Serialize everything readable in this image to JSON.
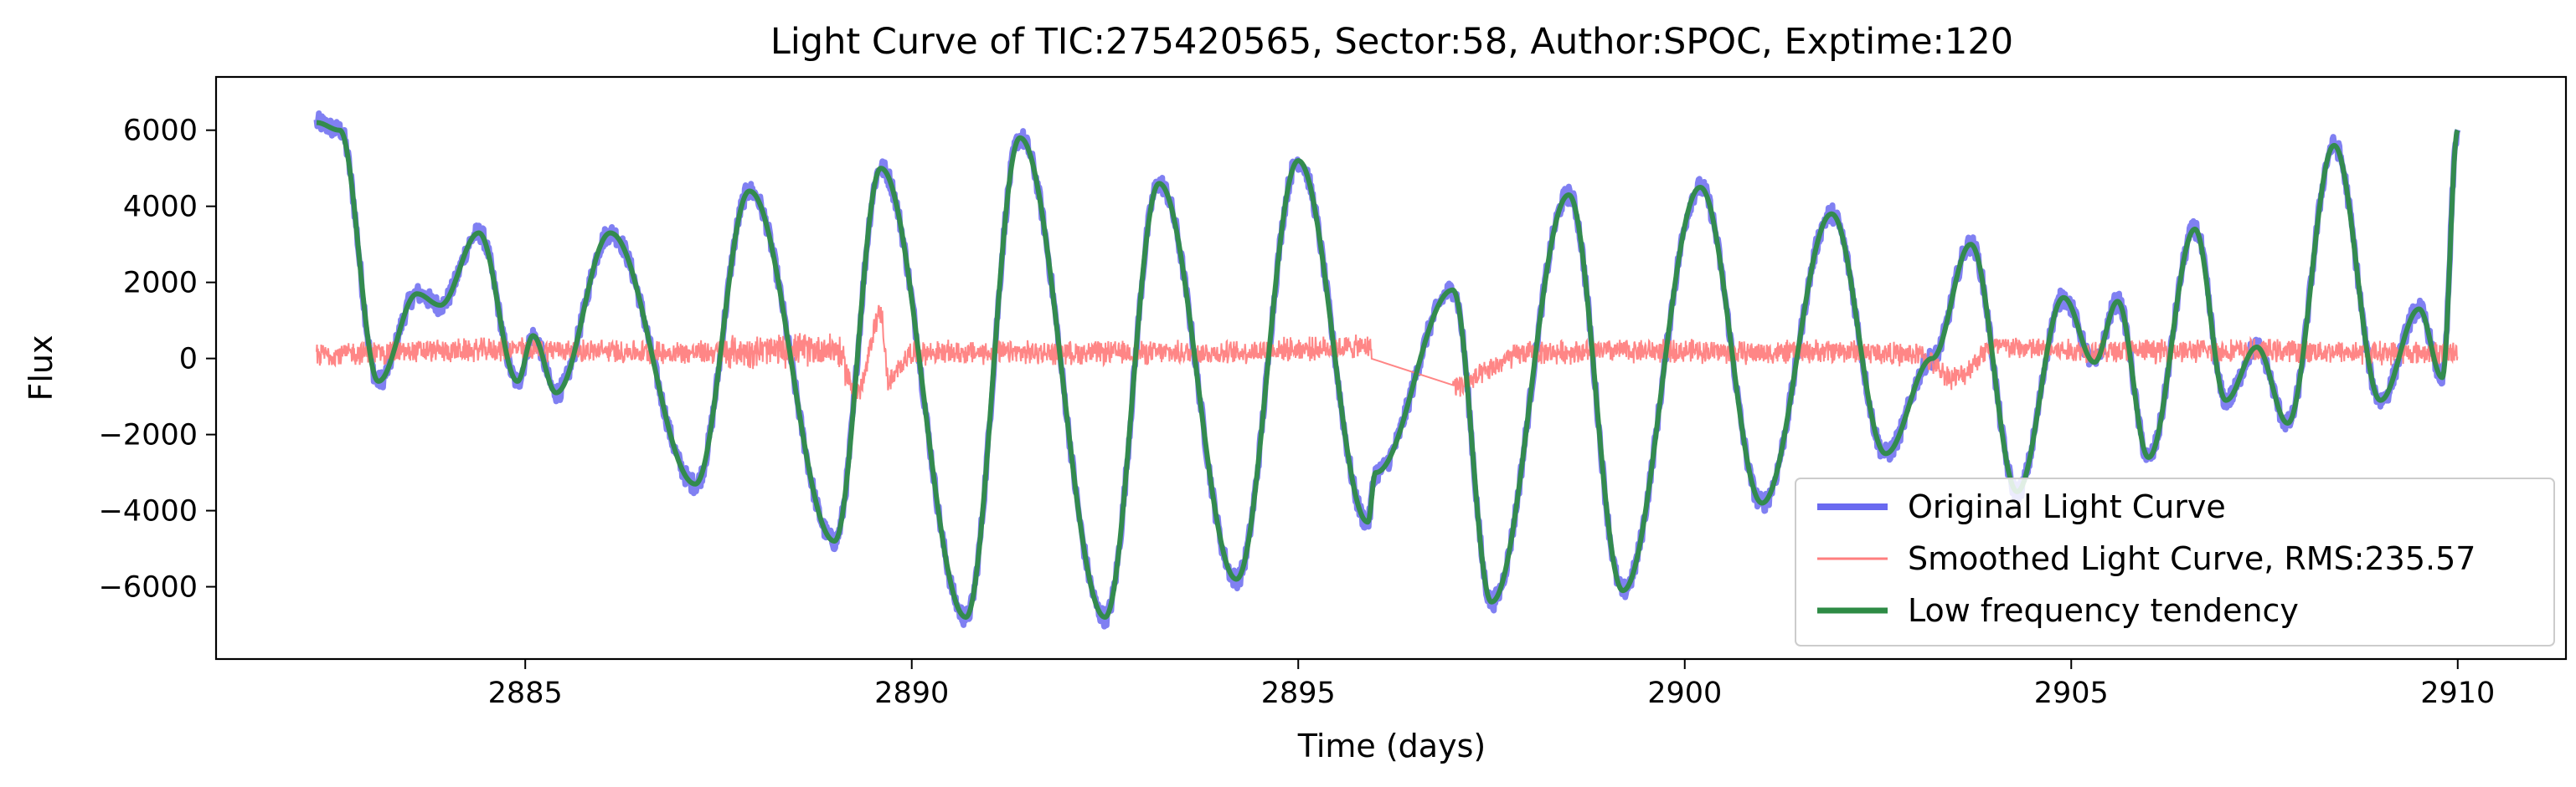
{
  "chart_data": {
    "type": "line",
    "title": "Light Curve of TIC:275420565, Sector:58, Author:SPOC, Exptime:120",
    "xlabel": "Time (days)",
    "ylabel": "Flux",
    "xlim": [
      2881.0,
      2911.4
    ],
    "ylim": [
      -7900,
      7400
    ],
    "x_ticks": [
      {
        "value": 2885,
        "label": "2885"
      },
      {
        "value": 2890,
        "label": "2890"
      },
      {
        "value": 2895,
        "label": "2895"
      },
      {
        "value": 2900,
        "label": "2900"
      },
      {
        "value": 2905,
        "label": "2905"
      },
      {
        "value": 2910,
        "label": "2910"
      }
    ],
    "y_ticks": [
      {
        "value": 6000,
        "label": "6000"
      },
      {
        "value": 4000,
        "label": "4000"
      },
      {
        "value": 2000,
        "label": "2000"
      },
      {
        "value": 0,
        "label": "0"
      },
      {
        "value": -2000,
        "label": "−2000"
      },
      {
        "value": -4000,
        "label": "−4000"
      },
      {
        "value": -6000,
        "label": "−6000"
      }
    ],
    "grid": false,
    "legend_position": "lower-right",
    "gap": [
      2896.0,
      2897.0
    ],
    "series": [
      {
        "name": "Original Light Curve",
        "color": "#6a6af0",
        "style": "thick-noisy",
        "x": [
          2882.3,
          2882.6,
          2883.1,
          2883.6,
          2883.9,
          2884.4,
          2884.9,
          2885.1,
          2885.4,
          2886.1,
          2887.2,
          2887.9,
          2889.0,
          2889.6,
          2890.7,
          2891.4,
          2892.5,
          2893.2,
          2894.2,
          2895.0,
          2895.9,
          2896.0,
          2897.0,
          2897.5,
          2898.5,
          2899.2,
          2900.2,
          2901.0,
          2901.9,
          2902.6,
          2903.2,
          2903.7,
          2904.3,
          2904.9,
          2905.3,
          2905.6,
          2906.0,
          2906.6,
          2907.0,
          2907.4,
          2907.8,
          2908.4,
          2909.0,
          2909.5,
          2909.8,
          2910.0
        ],
        "y": [
          6200,
          6000,
          -600,
          1700,
          1400,
          3300,
          -600,
          600,
          -900,
          3300,
          -3300,
          4400,
          -4800,
          5000,
          -6800,
          5800,
          -6800,
          4600,
          -5800,
          5200,
          -4300,
          -3000,
          1800,
          -6400,
          4300,
          -6100,
          4500,
          -3800,
          3800,
          -2500,
          0,
          3000,
          -3500,
          1600,
          -100,
          1500,
          -2600,
          3400,
          -1100,
          300,
          -1700,
          5600,
          -1100,
          1300,
          -500,
          6000
        ]
      },
      {
        "name": "Smoothed Light Curve, RMS:235.57",
        "color": "#ff7f7f",
        "style": "thin-noise",
        "x": [
          2882.3,
          2883.0,
          2884.0,
          2885.0,
          2886.0,
          2887.0,
          2888.0,
          2889.0,
          2889.3,
          2889.6,
          2889.7,
          2890.0,
          2891.0,
          2892.0,
          2893.0,
          2894.0,
          2895.0,
          2895.9,
          2897.0,
          2898.0,
          2899.0,
          2900.0,
          2901.0,
          2902.0,
          2903.0,
          2903.5,
          2904.0,
          2905.0,
          2906.0,
          2907.0,
          2908.0,
          2909.0,
          2910.0
        ],
        "y": [
          100,
          150,
          200,
          250,
          200,
          150,
          200,
          250,
          -900,
          1200,
          -600,
          150,
          150,
          150,
          150,
          150,
          250,
          300,
          -700,
          150,
          200,
          200,
          150,
          200,
          100,
          -500,
          300,
          200,
          200,
          200,
          200,
          150,
          150
        ],
        "noise_amplitude": 350
      },
      {
        "name": "Low frequency tendency",
        "color": "#2e8b45",
        "style": "smooth",
        "x": [
          2882.3,
          2882.6,
          2883.1,
          2883.6,
          2883.9,
          2884.4,
          2884.9,
          2885.1,
          2885.4,
          2886.1,
          2887.2,
          2887.9,
          2889.0,
          2889.6,
          2890.7,
          2891.4,
          2892.5,
          2893.2,
          2894.2,
          2895.0,
          2895.9,
          2896.0,
          2897.0,
          2897.5,
          2898.5,
          2899.2,
          2900.2,
          2901.0,
          2901.9,
          2902.6,
          2903.2,
          2903.7,
          2904.3,
          2904.9,
          2905.3,
          2905.6,
          2906.0,
          2906.6,
          2907.0,
          2907.4,
          2907.8,
          2908.4,
          2909.0,
          2909.5,
          2909.8,
          2910.0
        ],
        "y": [
          6200,
          6000,
          -600,
          1700,
          1400,
          3300,
          -600,
          600,
          -900,
          3300,
          -3300,
          4400,
          -4800,
          5000,
          -6800,
          5800,
          -6800,
          4600,
          -5800,
          5200,
          -4300,
          -3000,
          1800,
          -6400,
          4300,
          -6100,
          4500,
          -3800,
          3800,
          -2500,
          0,
          3000,
          -3500,
          1600,
          -100,
          1500,
          -2600,
          3400,
          -1100,
          300,
          -1700,
          5600,
          -1100,
          1300,
          -500,
          6000
        ]
      }
    ]
  }
}
